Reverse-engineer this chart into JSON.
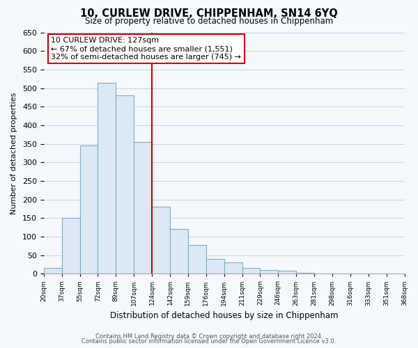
{
  "title": "10, CURLEW DRIVE, CHIPPENHAM, SN14 6YQ",
  "subtitle": "Size of property relative to detached houses in Chippenham",
  "xlabel": "Distribution of detached houses by size in Chippenham",
  "ylabel": "Number of detached properties",
  "bin_labels": [
    "20sqm",
    "37sqm",
    "55sqm",
    "72sqm",
    "89sqm",
    "107sqm",
    "124sqm",
    "142sqm",
    "159sqm",
    "176sqm",
    "194sqm",
    "211sqm",
    "229sqm",
    "246sqm",
    "263sqm",
    "281sqm",
    "298sqm",
    "316sqm",
    "333sqm",
    "351sqm",
    "368sqm"
  ],
  "bar_heights": [
    15,
    150,
    345,
    515,
    480,
    355,
    180,
    120,
    78,
    40,
    30,
    15,
    10,
    8,
    2,
    0,
    0,
    0,
    0,
    0
  ],
  "bar_color": "#dce9f5",
  "bar_edge_color": "#7aaac8",
  "vline_x": 6,
  "vline_color": "#cc0000",
  "ylim": [
    0,
    650
  ],
  "yticks": [
    0,
    50,
    100,
    150,
    200,
    250,
    300,
    350,
    400,
    450,
    500,
    550,
    600,
    650
  ],
  "annotation_title": "10 CURLEW DRIVE: 127sqm",
  "annotation_line1": "← 67% of detached houses are smaller (1,551)",
  "annotation_line2": "32% of semi-detached houses are larger (745) →",
  "footer1": "Contains HM Land Registry data © Crown copyright and database right 2024.",
  "footer2": "Contains public sector information licensed under the Open Government Licence v3.0.",
  "background_color": "#f5f8fc",
  "grid_color": "#c8d4e0"
}
